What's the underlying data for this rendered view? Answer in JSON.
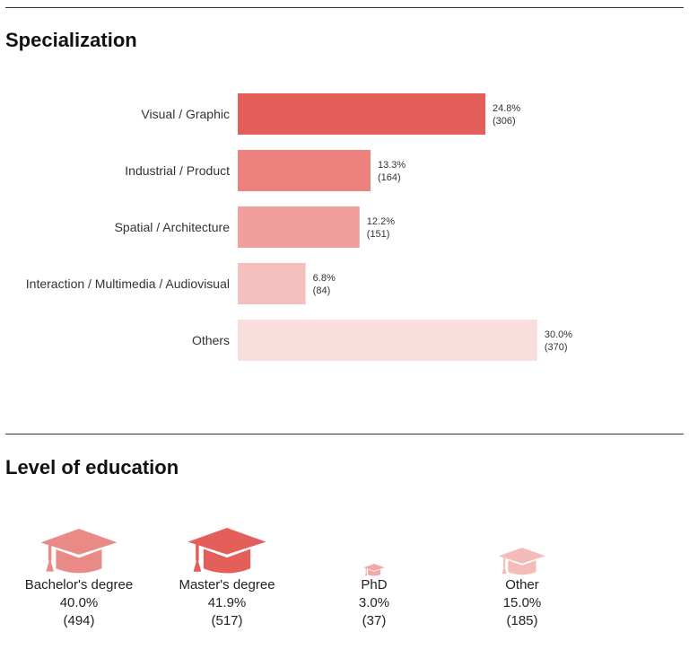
{
  "specialization": {
    "title": "Specialization"
  },
  "education": {
    "title": "Level of education",
    "items": [
      {
        "label": "Bachelor's degree",
        "percent": "40.0%",
        "count": "(494)",
        "value": 40.0,
        "color": "#ea8a87"
      },
      {
        "label": "Master's degree",
        "percent": "41.9%",
        "count": "(517)",
        "value": 41.9,
        "color": "#e55f5a"
      },
      {
        "label": "PhD",
        "percent": "3.0%",
        "count": "(37)",
        "value": 3.0,
        "color": "#f0a9a6"
      },
      {
        "label": "Other",
        "percent": "15.0%",
        "count": "(185)",
        "value": 15.0,
        "color": "#f3bcba"
      }
    ]
  },
  "chart_data": {
    "type": "bar",
    "orientation": "horizontal",
    "title": "Specialization",
    "categories": [
      "Visual / Graphic",
      "Industrial / Product",
      "Spatial / Architecture",
      "Interaction / Multimedia / Audiovisual",
      "Others"
    ],
    "values": [
      24.8,
      13.3,
      12.2,
      6.8,
      30.0
    ],
    "value_labels": [
      "24.8%",
      "13.3%",
      "12.2%",
      "6.8%",
      "30.0%"
    ],
    "count_labels": [
      "(306)",
      "(164)",
      "(151)",
      "(84)",
      "(370)"
    ],
    "counts": [
      306,
      164,
      151,
      84,
      370
    ],
    "colors": [
      "#e55f5a",
      "#ec817d",
      "#f09f9c",
      "#f4c0be",
      "#fadedd"
    ],
    "xlim": [
      0,
      30
    ],
    "xlabel": "",
    "ylabel": "",
    "grid": false
  }
}
